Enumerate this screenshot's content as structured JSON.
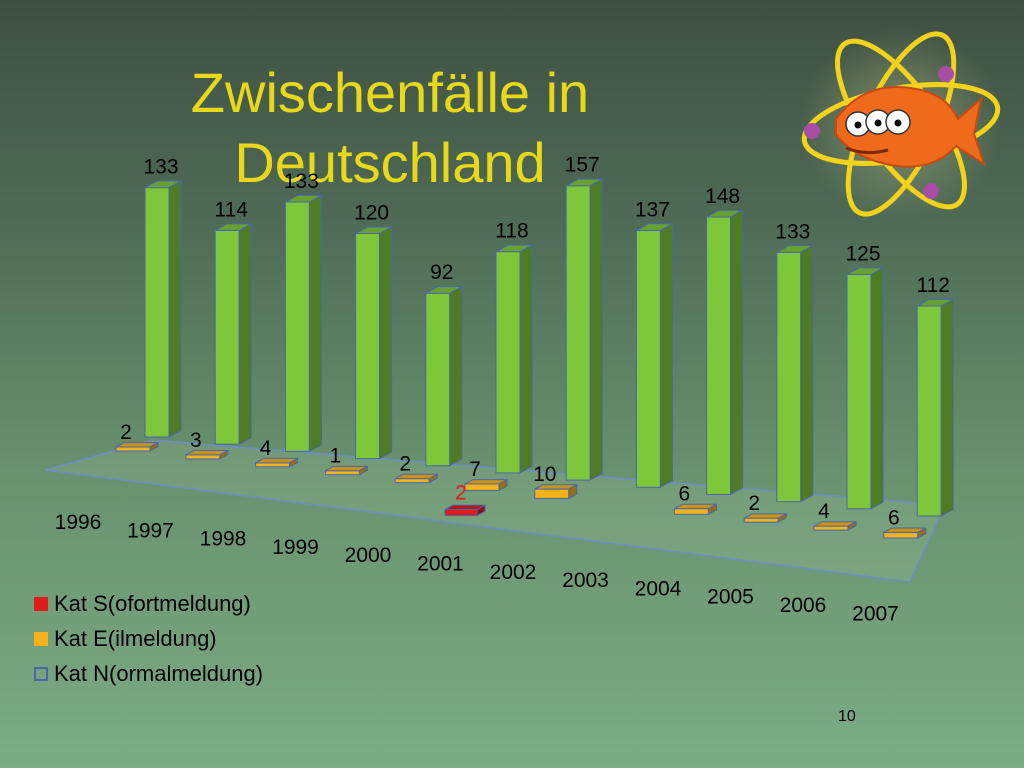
{
  "slide": {
    "title_line1": "Zwischenfälle in",
    "title_line2": "Deutschland",
    "page_number": "10",
    "logo_icon": "atom-fish-icon"
  },
  "chart_data": {
    "type": "bar",
    "title": "",
    "xlabel": "",
    "ylabel": "",
    "categories": [
      "1996",
      "1997",
      "1998",
      "1999",
      "2000",
      "2001",
      "2002",
      "2003",
      "2004",
      "2005",
      "2006",
      "2007"
    ],
    "series": [
      {
        "name": "Kat S(ofortmeldung)",
        "color": "#e01b1b",
        "values": [
          0,
          0,
          0,
          0,
          0,
          2,
          0,
          0,
          0,
          0,
          0,
          0
        ],
        "labels": [
          "",
          "",
          "",
          "",
          "",
          "2",
          "",
          "",
          "",
          "",
          "",
          ""
        ]
      },
      {
        "name": "Kat E(ilmeldung)",
        "color": "#f2b21c",
        "values": [
          2,
          3,
          4,
          1,
          2,
          7,
          10,
          0,
          6,
          2,
          4,
          6
        ],
        "labels": [
          "2",
          "3",
          "4",
          "1",
          "2",
          "7",
          "10",
          "",
          "6",
          "2",
          "4",
          "6"
        ]
      },
      {
        "name": "Kat N(ormalmeldung)",
        "color": "#7ec63a",
        "values": [
          133,
          114,
          133,
          120,
          92,
          118,
          157,
          137,
          148,
          133,
          125,
          112
        ],
        "labels": [
          "133",
          "114",
          "133",
          "120",
          "92",
          "118",
          "157",
          "137",
          "148",
          "133",
          "125",
          "112"
        ]
      }
    ],
    "ylim": [
      0,
      160
    ],
    "style": "3d-bars",
    "legend_position": "bottom-left",
    "grid": false
  }
}
